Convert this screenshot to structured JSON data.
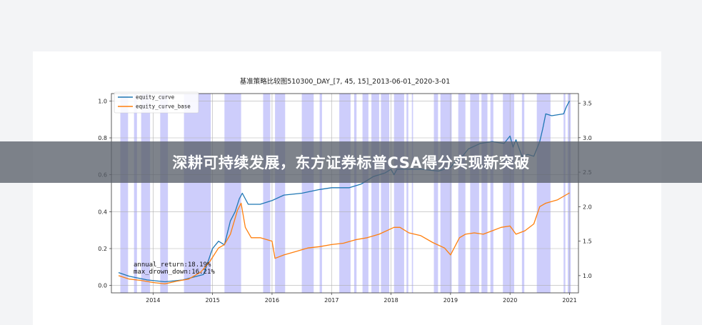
{
  "banner": {
    "text": "深耕可持续发展，东方证券标普CSA得分实现新突破"
  },
  "chart_data": {
    "type": "line",
    "title": "基准策略比较图510300_DAY_[7, 45, 15]_2013-06-01_2020-3-01",
    "xlabel": "",
    "ylabel_left": "",
    "ylabel_right": "",
    "x_ticks": [
      "2014",
      "2015",
      "2016",
      "2017",
      "2018",
      "2019",
      "2020",
      "2021"
    ],
    "xlim": [
      2013.3,
      2021.15
    ],
    "left_axis": {
      "ylim": [
        -0.04,
        1.04
      ],
      "ticks": [
        "0.0",
        "0.2",
        "0.4",
        "0.6",
        "0.8",
        "1.0"
      ]
    },
    "right_axis": {
      "ylim": [
        0.75,
        3.64
      ],
      "ticks": [
        "1.0",
        "1.5",
        "2.0",
        "2.5",
        "3.0",
        "3.5"
      ]
    },
    "grid": true,
    "legend_placement": "top-left",
    "series": [
      {
        "name": "equity_curve",
        "color": "#1f77b4",
        "axis": "left",
        "x": [
          2013.42,
          2013.6,
          2013.9,
          2014.2,
          2014.5,
          2014.85,
          2015.0,
          2015.1,
          2015.2,
          2015.3,
          2015.38,
          2015.45,
          2015.5,
          2015.6,
          2015.8,
          2016.0,
          2016.2,
          2016.5,
          2016.8,
          2017.0,
          2017.3,
          2017.5,
          2017.7,
          2017.9,
          2018.0,
          2018.05,
          2018.1,
          2018.3,
          2018.5,
          2018.8,
          2019.0,
          2019.1,
          2019.2,
          2019.3,
          2019.5,
          2019.7,
          2019.9,
          2020.0,
          2020.05,
          2020.1,
          2020.2,
          2020.3,
          2020.4,
          2020.5,
          2020.55,
          2020.6,
          2020.7,
          2020.9,
          2020.95,
          2021.0
        ],
        "values": [
          0.07,
          0.05,
          0.03,
          0.02,
          0.03,
          0.06,
          0.2,
          0.24,
          0.22,
          0.35,
          0.4,
          0.47,
          0.5,
          0.44,
          0.44,
          0.46,
          0.49,
          0.5,
          0.52,
          0.53,
          0.53,
          0.55,
          0.59,
          0.61,
          0.63,
          0.6,
          0.63,
          0.63,
          0.63,
          0.62,
          0.64,
          0.68,
          0.7,
          0.74,
          0.77,
          0.78,
          0.77,
          0.81,
          0.75,
          0.79,
          0.7,
          0.71,
          0.7,
          0.78,
          0.85,
          0.93,
          0.92,
          0.93,
          0.97,
          1.0
        ]
      },
      {
        "name": "equity_curve_base",
        "color": "#ff7f0e",
        "axis": "right",
        "x": [
          2013.42,
          2013.6,
          2013.8,
          2014.0,
          2014.2,
          2014.4,
          2014.6,
          2014.8,
          2014.95,
          2015.1,
          2015.2,
          2015.3,
          2015.42,
          2015.48,
          2015.55,
          2015.65,
          2015.8,
          2016.0,
          2016.05,
          2016.2,
          2016.4,
          2016.6,
          2016.8,
          2017.0,
          2017.2,
          2017.4,
          2017.6,
          2017.8,
          2018.0,
          2018.05,
          2018.15,
          2018.3,
          2018.5,
          2018.7,
          2018.9,
          2019.0,
          2019.15,
          2019.25,
          2019.4,
          2019.55,
          2019.7,
          2019.85,
          2020.0,
          2020.1,
          2020.25,
          2020.4,
          2020.5,
          2020.6,
          2020.8,
          2021.0
        ],
        "values": [
          1.0,
          0.95,
          0.93,
          0.9,
          0.88,
          0.92,
          0.95,
          1.05,
          1.2,
          1.4,
          1.45,
          1.6,
          1.95,
          2.05,
          1.7,
          1.55,
          1.55,
          1.5,
          1.25,
          1.3,
          1.35,
          1.4,
          1.42,
          1.45,
          1.47,
          1.52,
          1.55,
          1.6,
          1.68,
          1.7,
          1.7,
          1.62,
          1.58,
          1.48,
          1.4,
          1.3,
          1.55,
          1.6,
          1.62,
          1.6,
          1.65,
          1.7,
          1.72,
          1.6,
          1.65,
          1.75,
          2.0,
          2.05,
          2.1,
          2.2
        ]
      }
    ],
    "highlight_color": "#7b7bf5",
    "highlight_spans": [
      [
        2013.45,
        2013.58
      ],
      [
        2013.68,
        2013.73
      ],
      [
        2013.8,
        2013.95
      ],
      [
        2014.12,
        2014.25
      ],
      [
        2014.52,
        2014.97
      ],
      [
        2015.2,
        2015.48
      ],
      [
        2015.85,
        2015.97
      ],
      [
        2016.05,
        2016.22
      ],
      [
        2016.5,
        2016.7
      ],
      [
        2016.8,
        2016.84
      ],
      [
        2017.13,
        2017.32
      ],
      [
        2017.38,
        2017.42
      ],
      [
        2017.52,
        2017.62
      ],
      [
        2017.67,
        2017.8
      ],
      [
        2017.83,
        2017.97
      ],
      [
        2018.05,
        2018.22
      ],
      [
        2018.26,
        2018.29
      ],
      [
        2018.35,
        2018.37
      ],
      [
        2018.72,
        2018.79
      ],
      [
        2018.83,
        2019.02
      ],
      [
        2019.13,
        2019.25
      ],
      [
        2019.33,
        2019.48
      ],
      [
        2019.52,
        2019.62
      ],
      [
        2019.67,
        2019.72
      ],
      [
        2019.88,
        2020.07
      ],
      [
        2020.2,
        2020.24
      ],
      [
        2020.45,
        2020.68
      ],
      [
        2020.9,
        2020.93
      ],
      [
        2020.97,
        2021.02
      ]
    ],
    "annotations": [
      "annual_return:18.19%",
      "max_drown_down:16.21%"
    ]
  }
}
